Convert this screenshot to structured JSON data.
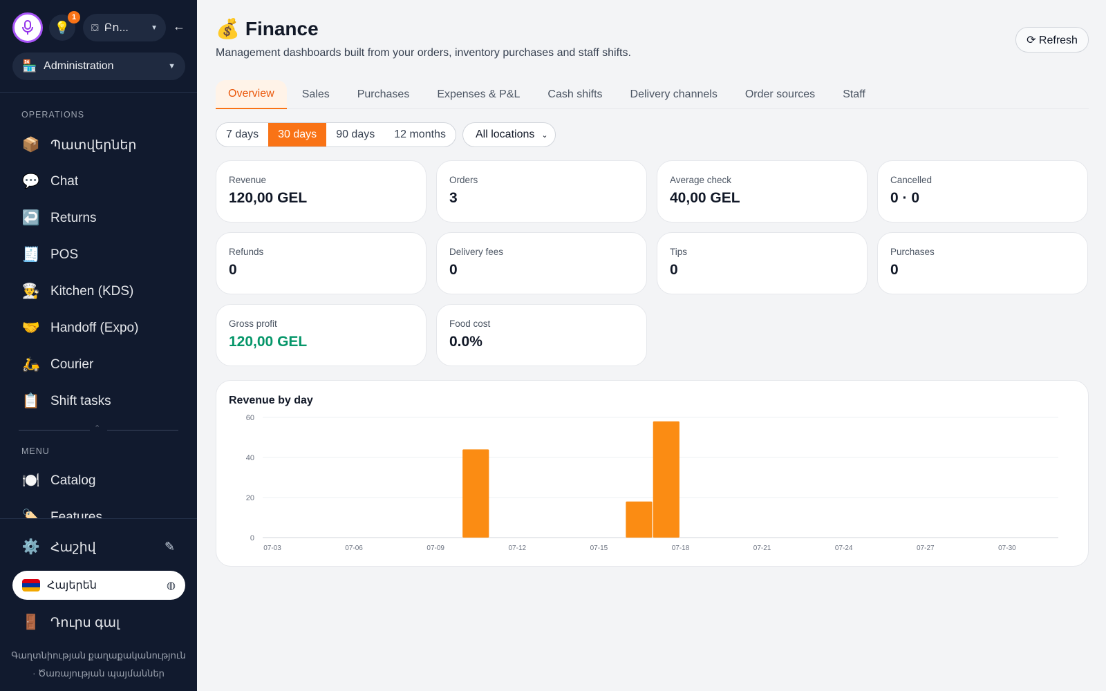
{
  "sidebar": {
    "notification_count": "1",
    "store_label": "Բո...",
    "role_label": "Administration",
    "sections": {
      "operations": "OPERATIONS",
      "menu": "MENU"
    },
    "operations_items": [
      {
        "icon": "📦",
        "label": "Պատվերներ"
      },
      {
        "icon": "💬",
        "label": "Chat"
      },
      {
        "icon": "↩️",
        "label": "Returns"
      },
      {
        "icon": "🧾",
        "label": "POS"
      },
      {
        "icon": "👨‍🍳",
        "label": "Kitchen (KDS)"
      },
      {
        "icon": "🤝",
        "label": "Handoff (Expo)"
      },
      {
        "icon": "🛵",
        "label": "Courier"
      },
      {
        "icon": "📋",
        "label": "Shift tasks"
      }
    ],
    "menu_items": [
      {
        "icon": "🍽️",
        "label": "Catalog"
      },
      {
        "icon": "🏷️",
        "label": "Features"
      }
    ],
    "account_label": "Հաշիվ",
    "language_label": "Հայերեն",
    "logout_label": "Դուրս գալ",
    "footer_privacy": "Գաղտնիության քաղաքականություն",
    "footer_terms": "· Ծառայության պայմաններ"
  },
  "header": {
    "title": "Finance",
    "subtitle": "Management dashboards built from your orders, inventory purchases and staff shifts.",
    "refresh_label": "⟳ Refresh"
  },
  "tabs": [
    "Overview",
    "Sales",
    "Purchases",
    "Expenses & P&L",
    "Cash shifts",
    "Delivery channels",
    "Order sources",
    "Staff"
  ],
  "active_tab": "Overview",
  "ranges": [
    "7 days",
    "30 days",
    "90 days",
    "12 months"
  ],
  "active_range": "30 days",
  "location_select": "All locations",
  "metrics": [
    {
      "label": "Revenue",
      "value": "120,00 GEL"
    },
    {
      "label": "Orders",
      "value": "3"
    },
    {
      "label": "Average check",
      "value": "40,00 GEL"
    },
    {
      "label": "Cancelled",
      "value": "0 · 0"
    },
    {
      "label": "Refunds",
      "value": "0"
    },
    {
      "label": "Delivery fees",
      "value": "0"
    },
    {
      "label": "Tips",
      "value": "0"
    },
    {
      "label": "Purchases",
      "value": "0"
    },
    {
      "label": "Gross profit",
      "value": "120,00 GEL"
    },
    {
      "label": "Food cost",
      "value": "0.0%"
    }
  ],
  "accent_color": "#f97316",
  "profit_color": "#059669",
  "chart_data": {
    "type": "bar",
    "title": "Revenue by day",
    "xlabel": "",
    "ylabel": "",
    "ylim": [
      0,
      60
    ],
    "yticks": [
      0,
      20,
      40,
      60
    ],
    "grid": true,
    "categories": [
      "07-03",
      "07-04",
      "07-05",
      "07-06",
      "07-07",
      "07-08",
      "07-09",
      "07-10",
      "07-11",
      "07-12",
      "07-13",
      "07-14",
      "07-15",
      "07-16",
      "07-17",
      "07-18",
      "07-19",
      "07-20",
      "07-21",
      "07-22",
      "07-23",
      "07-24",
      "07-25",
      "07-26",
      "07-27",
      "07-28",
      "07-29",
      "07-30",
      "07-31",
      "08-01"
    ],
    "tick_labels": [
      "07-03",
      "07-06",
      "07-09",
      "07-12",
      "07-15",
      "07-18",
      "07-21",
      "07-24",
      "07-27",
      "07-30"
    ],
    "values": [
      0,
      0,
      0,
      0,
      0,
      0,
      0,
      44,
      0,
      0,
      0,
      0,
      0,
      18,
      58,
      0,
      0,
      0,
      0,
      0,
      0,
      0,
      0,
      0,
      0,
      0,
      0,
      0,
      0,
      0
    ],
    "color": "#fb8c13"
  }
}
